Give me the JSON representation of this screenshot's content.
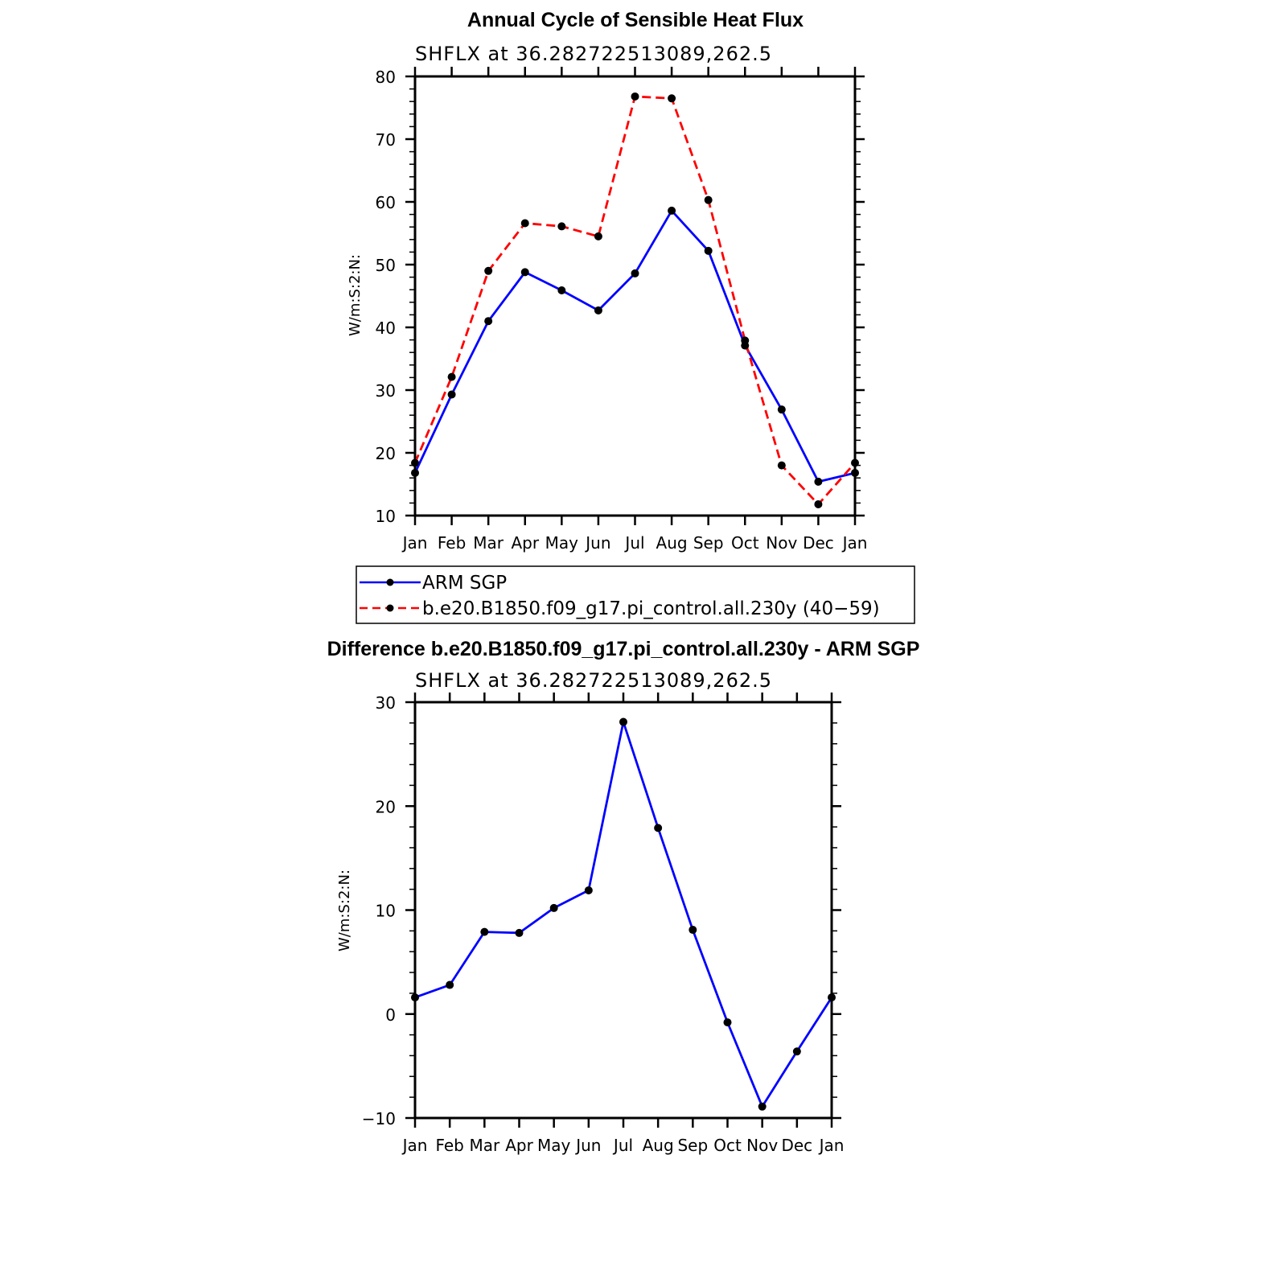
{
  "chart_data": [
    {
      "type": "line",
      "title": "Annual Cycle of Sensible Heat Flux",
      "subtitle": "SHFLX at 36.282722513089,262.5",
      "xlabel": "",
      "ylabel": "W/m:S:2:N:",
      "categories": [
        "Jan",
        "Feb",
        "Mar",
        "Apr",
        "May",
        "Jun",
        "Jul",
        "Aug",
        "Sep",
        "Oct",
        "Nov",
        "Dec",
        "Jan"
      ],
      "ylim": [
        10,
        80
      ],
      "yticks": [
        10,
        20,
        30,
        40,
        50,
        60,
        70,
        80
      ],
      "grid": false,
      "legend_position": "bottom",
      "series": [
        {
          "name": "ARM SGP",
          "color": "#0000ff",
          "dash": "solid",
          "values": [
            16.8,
            29.3,
            41.0,
            48.8,
            45.9,
            42.7,
            48.6,
            58.6,
            52.2,
            37.1,
            26.9,
            15.4,
            16.8
          ]
        },
        {
          "name": "b.e20.B1850.f09_g17.pi_control.all.230y (40−59)",
          "color": "#ff0000",
          "dash": "dashed",
          "values": [
            18.4,
            32.1,
            49.0,
            56.6,
            56.1,
            54.5,
            76.8,
            76.5,
            60.3,
            37.9,
            18.0,
            11.8,
            18.4
          ]
        }
      ]
    },
    {
      "type": "line",
      "title": "Difference b.e20.B1850.f09_g17.pi_control.all.230y - ARM SGP",
      "subtitle": "SHFLX at 36.282722513089,262.5",
      "xlabel": "",
      "ylabel": "W/m:S:2:N:",
      "categories": [
        "Jan",
        "Feb",
        "Mar",
        "Apr",
        "May",
        "Jun",
        "Jul",
        "Aug",
        "Sep",
        "Oct",
        "Nov",
        "Dec",
        "Jan"
      ],
      "ylim": [
        -10,
        30
      ],
      "yticks": [
        -10,
        0,
        10,
        20,
        30
      ],
      "ytick_labels": [
        "−10",
        "0",
        "10",
        "20",
        "30"
      ],
      "grid": false,
      "series": [
        {
          "name": "Difference",
          "color": "#0000ff",
          "dash": "solid",
          "values": [
            1.6,
            2.8,
            7.9,
            7.8,
            10.2,
            11.9,
            28.1,
            17.9,
            8.1,
            -0.8,
            -8.9,
            -3.6,
            1.6
          ]
        }
      ]
    }
  ]
}
